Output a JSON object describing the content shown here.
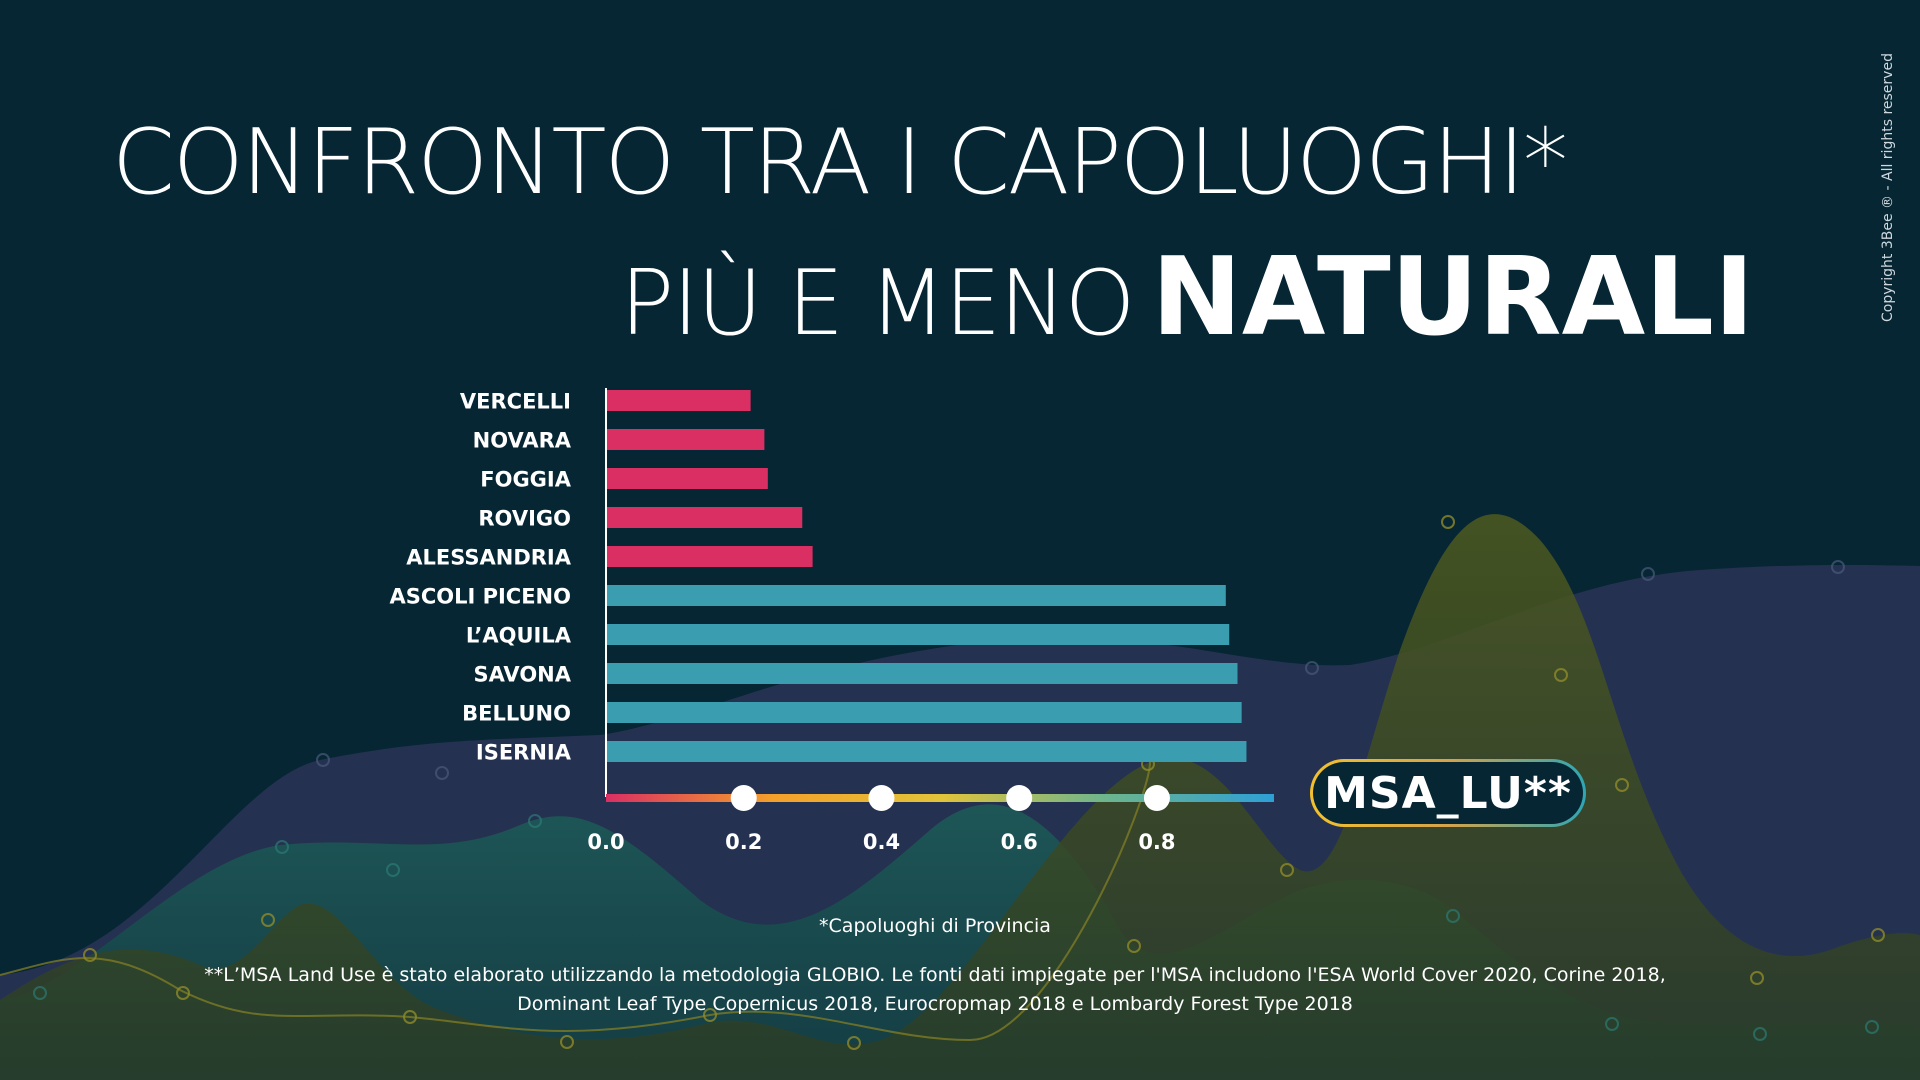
{
  "title": {
    "line1": "CONFRONTO TRA I CAPOLUOGHI*",
    "line2_light": "PIÙ E MENO",
    "line2_bold": "NATURALI"
  },
  "copyright": "Copyright 3Bee ® - All rights reserved",
  "metric_badge": "MSA_LU**",
  "footnotes": {
    "note1": "*Capoluoghi di Provincia",
    "note2_line1": "**L’MSA Land Use è stato elaborato utilizzando la metodologia GLOBIO. Le fonti dati impiegate per l'MSA includono l'ESA World Cover 2020, Corine 2018,",
    "note2_line2": "Dominant Leaf Type Copernicus 2018, Eurocropmap 2018 e Lombardy Forest Type 2018"
  },
  "colors": {
    "background": "#062634",
    "low_bar": "#d92f63",
    "high_bar": "#3a9db0",
    "axis_gradient": [
      "#d92f63",
      "#f4a02a",
      "#e2c43a",
      "#6cb58e",
      "#2e9fd6"
    ]
  },
  "chart_data": {
    "type": "bar",
    "orientation": "horizontal",
    "categories": [
      "VERCELLI",
      "NOVARA",
      "FOGGIA",
      "ROVIGO",
      "ALESSANDRIA",
      "ASCOLI PICENO",
      "L’AQUILA",
      "SAVONA",
      "BELLUNO",
      "ISERNIA"
    ],
    "values": [
      0.21,
      0.23,
      0.235,
      0.285,
      0.3,
      0.9,
      0.905,
      0.917,
      0.923,
      0.93
    ],
    "groups": [
      "low",
      "low",
      "low",
      "low",
      "low",
      "high",
      "high",
      "high",
      "high",
      "high"
    ],
    "xlim": [
      0,
      0.97
    ],
    "xticks": [
      "0.0",
      "0.2",
      "0.4",
      "0.6",
      "0.8"
    ],
    "xtick_values": [
      0,
      0.2,
      0.4,
      0.6,
      0.8
    ],
    "xtick_markers": [
      0.2,
      0.4,
      0.6,
      0.8
    ],
    "xlabel": "MSA_LU**",
    "grid": false,
    "legend": "none"
  }
}
